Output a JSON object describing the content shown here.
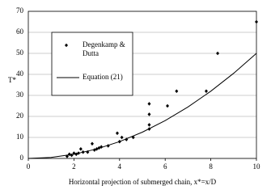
{
  "chart_data": {
    "type": "scatter",
    "x_label": "Horizontal projection of submerged chain, x*=x/D",
    "y_label": "T*",
    "xlim": [
      0,
      10
    ],
    "xticks": [
      0,
      2,
      4,
      6,
      8,
      10
    ],
    "ylim": [
      0,
      70
    ],
    "yticks": [
      0,
      10,
      20,
      30,
      40,
      50,
      60,
      70
    ],
    "grid": true,
    "legend": "upper left",
    "series": [
      {
        "name": "Degenkamp & Dutta",
        "color": "#000000",
        "mode": "markers",
        "x": [
          1.7,
          1.8,
          1.9,
          2.0,
          2.1,
          2.2,
          2.3,
          2.4,
          2.6,
          2.8,
          2.9,
          3.0,
          3.1,
          3.2,
          3.5,
          3.9,
          4.0,
          4.1,
          4.3,
          4.6,
          5.3,
          5.3,
          5.3,
          5.3,
          6.1,
          6.5,
          7.8,
          8.3,
          10.0
        ],
        "values": [
          1,
          2,
          1.5,
          2.5,
          2,
          2.5,
          4.5,
          3,
          3,
          7,
          4,
          4.5,
          5,
          5.5,
          6,
          12,
          8,
          10,
          9,
          10,
          26,
          21,
          16,
          14,
          25,
          32,
          32,
          50,
          65
        ]
      },
      {
        "name": "Equation (21)",
        "color": "#000000",
        "mode": "line",
        "x": [
          0,
          1,
          2,
          3,
          4,
          5,
          6,
          7,
          8,
          9,
          10
        ],
        "values": [
          0,
          0.5,
          2,
          4.5,
          8,
          12.5,
          18,
          24.5,
          32,
          40.5,
          50
        ]
      }
    ]
  }
}
